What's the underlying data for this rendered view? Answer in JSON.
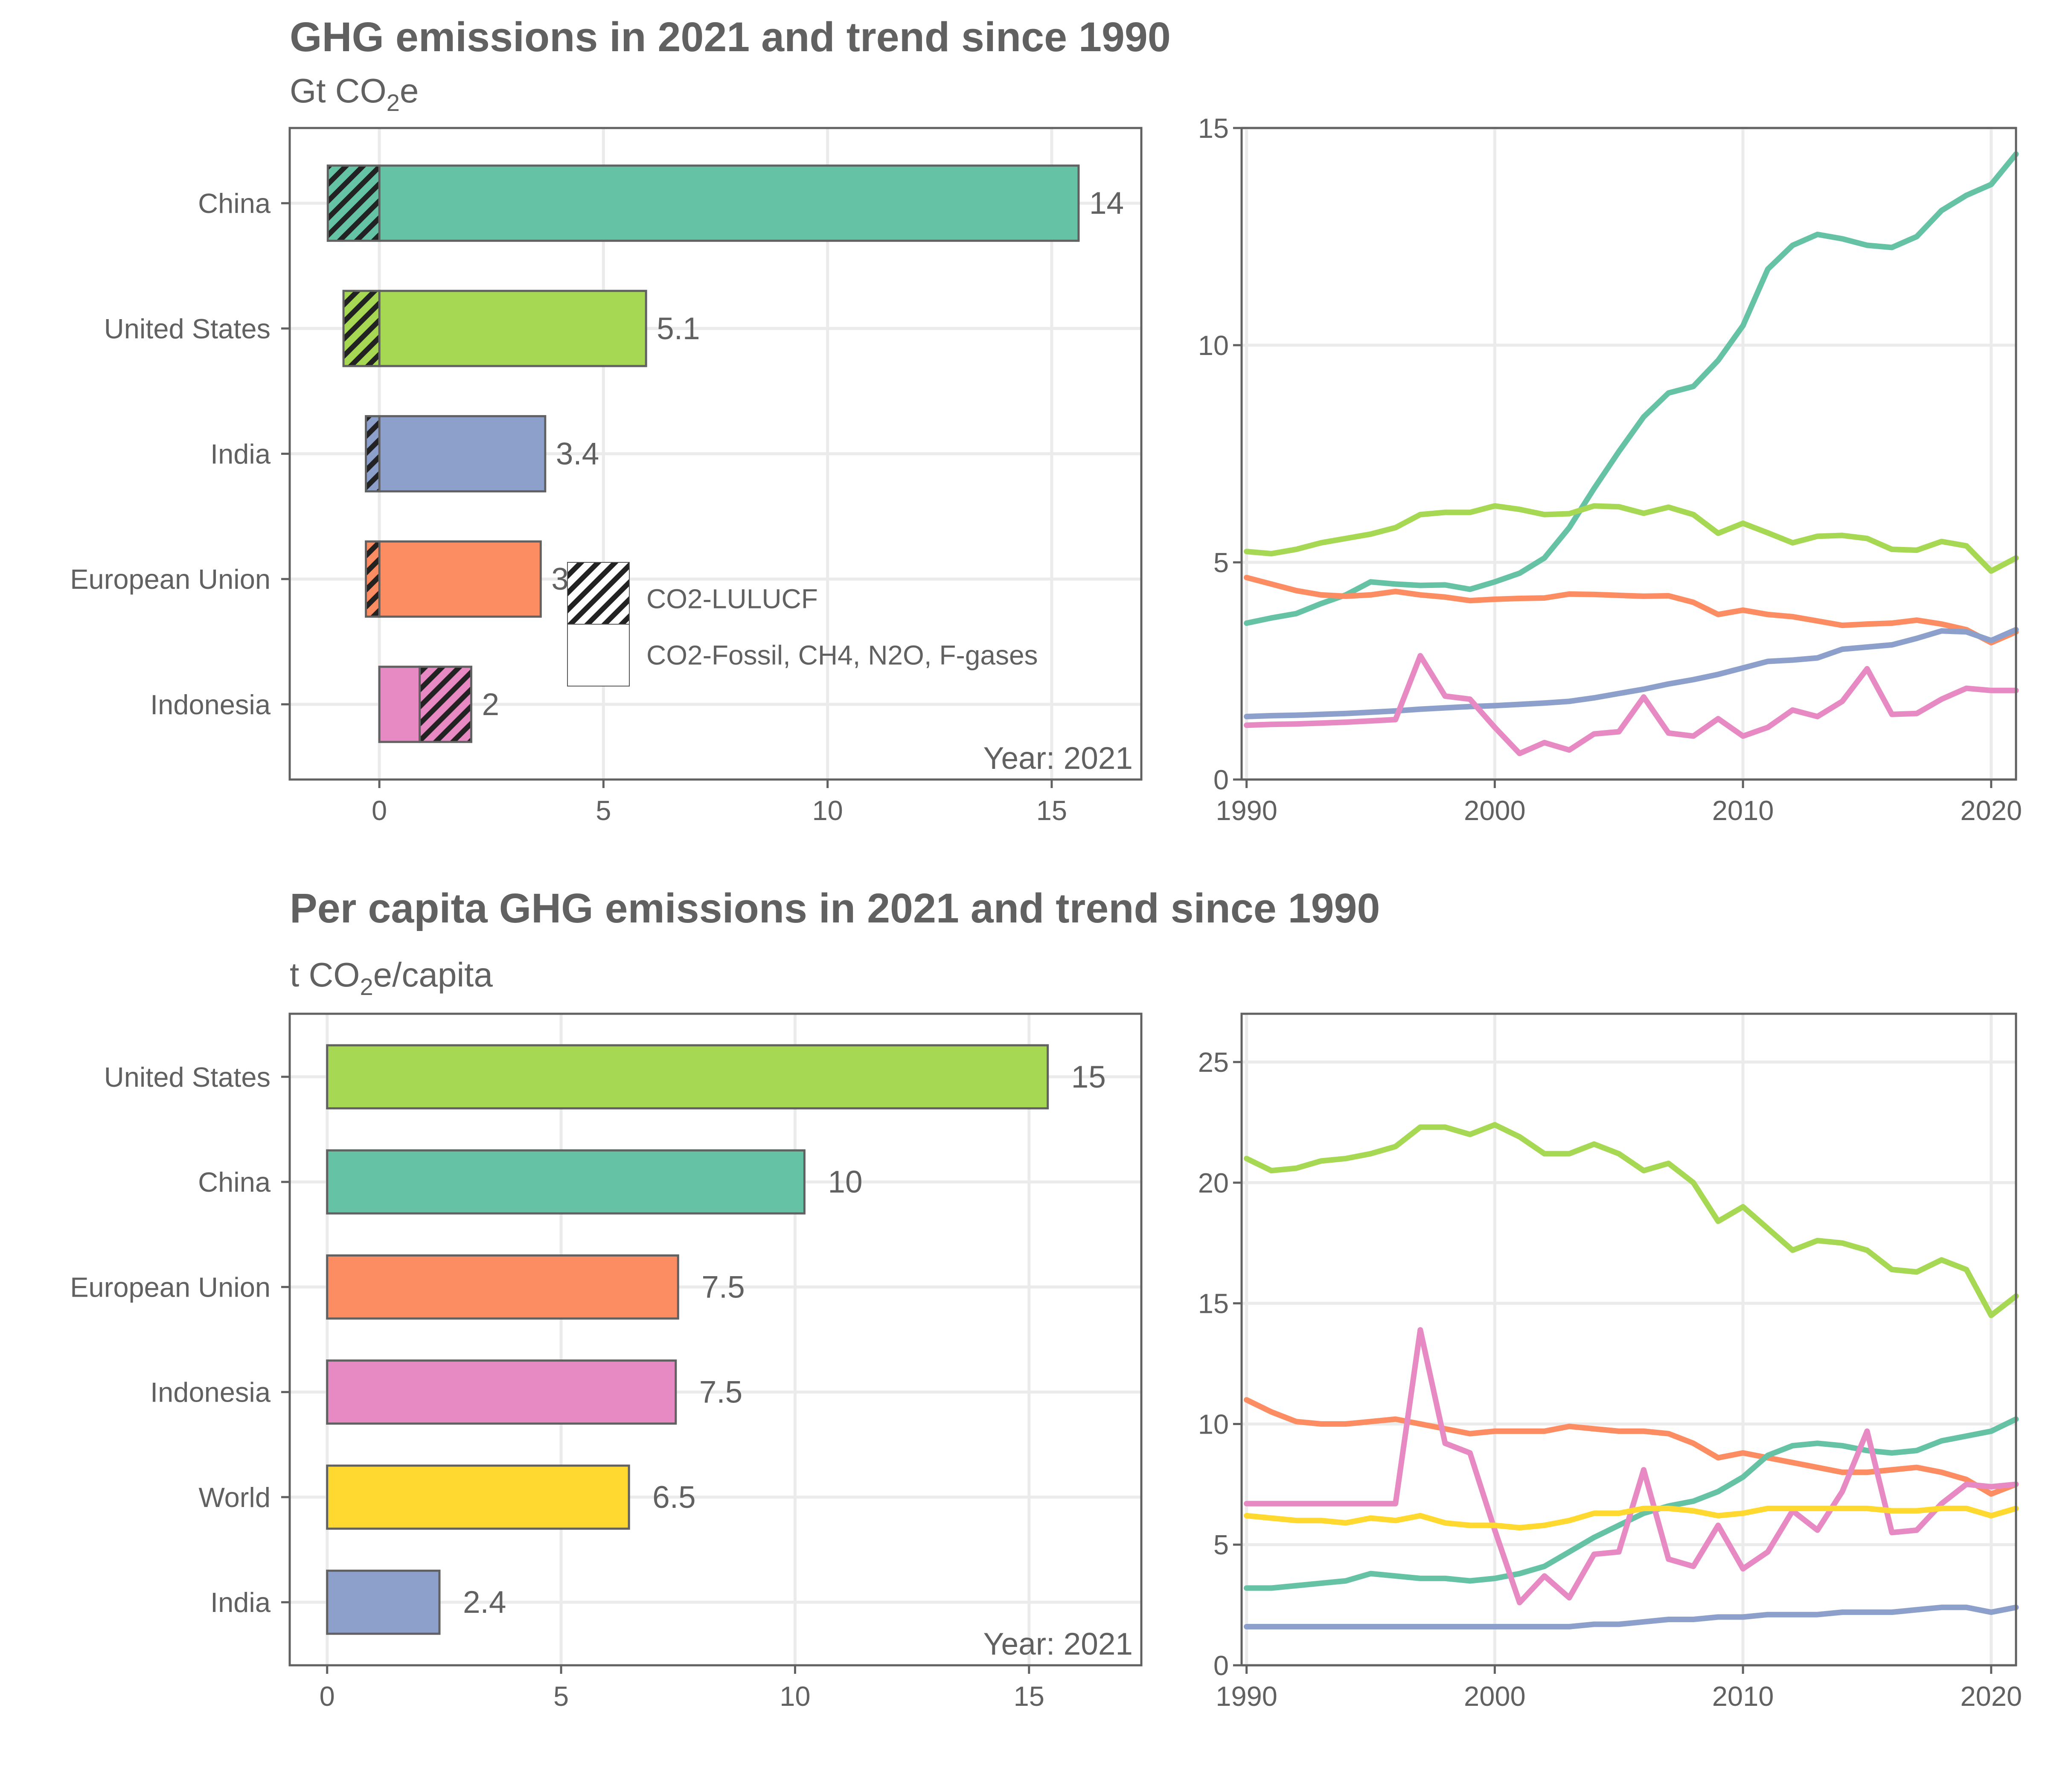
{
  "colors": {
    "China": "#66c2a5",
    "United States": "#a6d854",
    "India": "#8da0cb",
    "European Union": "#fc8d62",
    "Indonesia": "#e78ac3",
    "World": "#ffd92f"
  },
  "chart_data": [
    {
      "id": "total-bar",
      "type": "bar",
      "orientation": "horizontal",
      "title": "GHG emissions in 2021 and trend since 1990",
      "subtitle": {
        "base": "Gt CO",
        "sub": "2",
        "tail": "e"
      },
      "annotation": "Year: 2021",
      "categories": [
        "China",
        "United States",
        "India",
        "European Union",
        "Indonesia"
      ],
      "series": [
        {
          "name": "CO2-LULUCF",
          "values": [
            -1.15,
            -0.8,
            -0.3,
            -0.3,
            1.15
          ],
          "pattern": "hatched"
        },
        {
          "name": "CO2-Fossil, CH4, N2O, F-gases",
          "values": [
            15.6,
            5.95,
            3.7,
            3.6,
            0.9
          ]
        }
      ],
      "value_labels": [
        "14",
        "5.1",
        "3.4",
        "3",
        "2"
      ],
      "xlim": [
        -2,
        17
      ],
      "xticks": [
        0,
        5,
        10,
        15
      ],
      "legend_placement": "inside center-right",
      "grid": true
    },
    {
      "id": "total-trend",
      "type": "line",
      "xlim": [
        1989.8,
        2021
      ],
      "ylim": [
        0,
        15
      ],
      "xticks": [
        1990,
        2000,
        2010,
        2020
      ],
      "yticks": [
        0,
        5,
        10,
        15
      ],
      "grid": true,
      "x_start": 1990,
      "series": [
        {
          "name": "China",
          "values": [
            3.6,
            3.72,
            3.82,
            4.05,
            4.25,
            4.55,
            4.5,
            4.47,
            4.48,
            4.38,
            4.55,
            4.75,
            5.1,
            5.8,
            6.7,
            7.55,
            8.35,
            8.9,
            9.05,
            9.65,
            10.45,
            11.75,
            12.3,
            12.55,
            12.45,
            12.3,
            12.25,
            12.5,
            13.1,
            13.45,
            13.7,
            14.4
          ]
        },
        {
          "name": "United States",
          "values": [
            5.25,
            5.2,
            5.3,
            5.45,
            5.55,
            5.65,
            5.8,
            6.1,
            6.15,
            6.15,
            6.3,
            6.22,
            6.1,
            6.12,
            6.3,
            6.28,
            6.13,
            6.27,
            6.1,
            5.67,
            5.9,
            5.68,
            5.45,
            5.6,
            5.62,
            5.55,
            5.3,
            5.28,
            5.48,
            5.38,
            4.8,
            5.1
          ]
        },
        {
          "name": "European Union",
          "values": [
            4.65,
            4.5,
            4.35,
            4.25,
            4.22,
            4.25,
            4.33,
            4.25,
            4.2,
            4.12,
            4.15,
            4.17,
            4.18,
            4.27,
            4.26,
            4.24,
            4.22,
            4.23,
            4.08,
            3.8,
            3.9,
            3.8,
            3.75,
            3.65,
            3.55,
            3.58,
            3.6,
            3.67,
            3.58,
            3.45,
            3.15,
            3.4
          ]
        },
        {
          "name": "India",
          "values": [
            1.45,
            1.47,
            1.48,
            1.5,
            1.52,
            1.55,
            1.58,
            1.62,
            1.65,
            1.68,
            1.7,
            1.73,
            1.76,
            1.8,
            1.88,
            1.98,
            2.08,
            2.2,
            2.3,
            2.42,
            2.57,
            2.72,
            2.75,
            2.8,
            3.0,
            3.05,
            3.1,
            3.25,
            3.42,
            3.4,
            3.2,
            3.45
          ]
        },
        {
          "name": "Indonesia",
          "values": [
            1.25,
            1.27,
            1.28,
            1.3,
            1.32,
            1.35,
            1.38,
            2.85,
            1.92,
            1.85,
            1.2,
            0.6,
            0.85,
            0.68,
            1.05,
            1.1,
            1.9,
            1.07,
            1.0,
            1.4,
            1.0,
            1.2,
            1.6,
            1.45,
            1.8,
            2.55,
            1.5,
            1.52,
            1.85,
            2.1,
            2.05,
            2.05
          ]
        }
      ]
    },
    {
      "id": "percap-bar",
      "type": "bar",
      "orientation": "horizontal",
      "title": "Per capita GHG emissions in 2021 and trend since 1990",
      "subtitle": {
        "base": "t CO",
        "sub": "2",
        "tail": "e/capita"
      },
      "annotation": "Year: 2021",
      "categories": [
        "United States",
        "China",
        "European Union",
        "Indonesia",
        "World",
        "India"
      ],
      "values": [
        15.4,
        10.2,
        7.5,
        7.45,
        6.45,
        2.4
      ],
      "value_labels": [
        "15",
        "10",
        "7.5",
        "7.5",
        "6.5",
        "2.4"
      ],
      "xlim": [
        -0.8,
        17.4
      ],
      "xticks": [
        0,
        5,
        10,
        15
      ],
      "grid": true
    },
    {
      "id": "percap-trend",
      "type": "line",
      "xlim": [
        1989.8,
        2021
      ],
      "ylim": [
        0,
        27
      ],
      "xticks": [
        1990,
        2000,
        2010,
        2020
      ],
      "yticks": [
        0,
        5,
        10,
        15,
        20,
        25
      ],
      "grid": true,
      "x_start": 1990,
      "series": [
        {
          "name": "United States",
          "values": [
            21.0,
            20.5,
            20.6,
            20.9,
            21.0,
            21.2,
            21.5,
            22.3,
            22.3,
            22.0,
            22.4,
            21.9,
            21.2,
            21.2,
            21.6,
            21.2,
            20.5,
            20.8,
            20.0,
            18.4,
            19.0,
            18.1,
            17.2,
            17.6,
            17.5,
            17.2,
            16.4,
            16.3,
            16.8,
            16.4,
            14.5,
            15.3
          ]
        },
        {
          "name": "European Union",
          "values": [
            11.0,
            10.5,
            10.1,
            10.0,
            10.0,
            10.1,
            10.2,
            10.0,
            9.8,
            9.6,
            9.7,
            9.7,
            9.7,
            9.9,
            9.8,
            9.7,
            9.7,
            9.6,
            9.2,
            8.6,
            8.8,
            8.6,
            8.4,
            8.2,
            8.0,
            8.0,
            8.1,
            8.2,
            8.0,
            7.7,
            7.1,
            7.5
          ]
        },
        {
          "name": "China",
          "values": [
            3.2,
            3.2,
            3.3,
            3.4,
            3.5,
            3.8,
            3.7,
            3.6,
            3.6,
            3.5,
            3.6,
            3.8,
            4.1,
            4.7,
            5.3,
            5.8,
            6.3,
            6.6,
            6.8,
            7.2,
            7.8,
            8.7,
            9.1,
            9.2,
            9.1,
            8.9,
            8.8,
            8.9,
            9.3,
            9.5,
            9.7,
            10.2
          ]
        },
        {
          "name": "Indonesia",
          "values": [
            6.7,
            6.7,
            6.7,
            6.7,
            6.7,
            6.7,
            6.7,
            13.9,
            9.2,
            8.8,
            5.6,
            2.6,
            3.7,
            2.8,
            4.6,
            4.7,
            8.1,
            4.4,
            4.1,
            5.8,
            4.0,
            4.7,
            6.4,
            5.6,
            7.2,
            9.7,
            5.5,
            5.6,
            6.7,
            7.5,
            7.4,
            7.5
          ]
        },
        {
          "name": "World",
          "values": [
            6.2,
            6.1,
            6.0,
            6.0,
            5.9,
            6.1,
            6.0,
            6.2,
            5.9,
            5.8,
            5.8,
            5.7,
            5.8,
            6.0,
            6.3,
            6.3,
            6.5,
            6.5,
            6.4,
            6.2,
            6.3,
            6.5,
            6.5,
            6.5,
            6.5,
            6.5,
            6.4,
            6.4,
            6.5,
            6.5,
            6.2,
            6.5
          ]
        },
        {
          "name": "India",
          "values": [
            1.6,
            1.6,
            1.6,
            1.6,
            1.6,
            1.6,
            1.6,
            1.6,
            1.6,
            1.6,
            1.6,
            1.6,
            1.6,
            1.6,
            1.7,
            1.7,
            1.8,
            1.9,
            1.9,
            2.0,
            2.0,
            2.1,
            2.1,
            2.1,
            2.2,
            2.2,
            2.2,
            2.3,
            2.4,
            2.4,
            2.2,
            2.4
          ]
        }
      ]
    }
  ]
}
